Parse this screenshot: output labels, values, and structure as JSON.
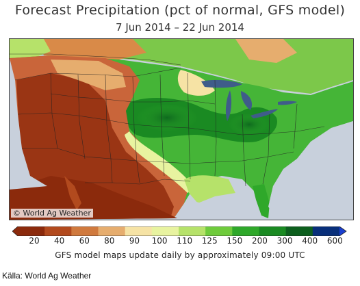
{
  "title": "Forecast Precipitation (pct of normal, GFS model)",
  "date_range": "7 Jun 2014 – 22 Jun 2014",
  "credit": "© World Ag Weather",
  "colorbar": {
    "labels": [
      "20",
      "40",
      "60",
      "80",
      "90",
      "100",
      "110",
      "125",
      "150",
      "200",
      "300",
      "400",
      "600"
    ],
    "colors": [
      "#8b2a0c",
      "#b24a1e",
      "#d07a3e",
      "#e6ad6e",
      "#f6e3a5",
      "#e8f3a0",
      "#b6e26a",
      "#6fcb3c",
      "#2fa82a",
      "#1a8a22",
      "#0d5f1e",
      "#082f7a",
      "#1a3fd0"
    ]
  },
  "footnote": "GFS model maps update daily by approximately 09:00 UTC",
  "source": "Källa: World Ag Weather"
}
